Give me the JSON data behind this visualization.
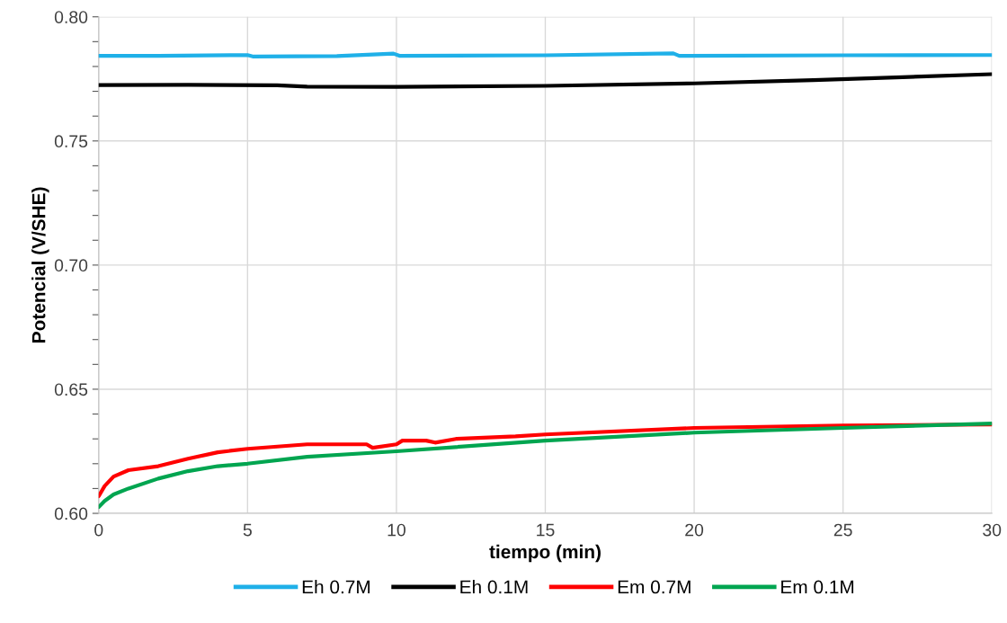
{
  "chart_data": {
    "type": "line",
    "xlabel": "tiempo (min)",
    "ylabel": "Potencial (V/SHE)",
    "xlim": [
      0,
      30
    ],
    "ylim": [
      0.6,
      0.8
    ],
    "xticks": [
      0,
      5,
      10,
      15,
      20,
      25,
      30
    ],
    "yticks": [
      {
        "value": 0.6,
        "label": "0.60"
      },
      {
        "value": 0.61,
        "label": null
      },
      {
        "value": 0.62,
        "label": null
      },
      {
        "value": 0.63,
        "label": null
      },
      {
        "value": 0.64,
        "label": null
      },
      {
        "value": 0.65,
        "label": "0.65"
      },
      {
        "value": 0.66,
        "label": null
      },
      {
        "value": 0.67,
        "label": null
      },
      {
        "value": 0.68,
        "label": null
      },
      {
        "value": 0.69,
        "label": null
      },
      {
        "value": 0.7,
        "label": "0.70"
      },
      {
        "value": 0.71,
        "label": null
      },
      {
        "value": 0.72,
        "label": null
      },
      {
        "value": 0.73,
        "label": null
      },
      {
        "value": 0.74,
        "label": null
      },
      {
        "value": 0.75,
        "label": "0.75"
      },
      {
        "value": 0.76,
        "label": null
      },
      {
        "value": 0.77,
        "label": null
      },
      {
        "value": 0.78,
        "label": null
      },
      {
        "value": 0.79,
        "label": null
      },
      {
        "value": 0.8,
        "label": "0.80"
      }
    ],
    "grid": true,
    "legend": "bottom",
    "marker": "none",
    "line_style": "solid",
    "series": [
      {
        "name": "Eh 0.7M",
        "color": "#1fb0e8",
        "x": [
          0,
          2,
          5,
          5.2,
          8,
          9.9,
          10.1,
          15,
          19.3,
          19.5,
          25,
          30
        ],
        "values": [
          0.7843,
          0.7843,
          0.7846,
          0.784,
          0.7842,
          0.7852,
          0.7843,
          0.7845,
          0.7853,
          0.7843,
          0.7845,
          0.7846
        ]
      },
      {
        "name": "Eh 0.1M",
        "color": "#000000",
        "x": [
          0,
          3,
          6,
          7,
          10,
          15,
          20,
          24,
          27,
          30
        ],
        "values": [
          0.7725,
          0.7726,
          0.7724,
          0.7719,
          0.7718,
          0.7722,
          0.7732,
          0.7745,
          0.7757,
          0.7769
        ]
      },
      {
        "name": "Em 0.7M",
        "color": "#ff0000",
        "x": [
          0,
          0.2,
          0.5,
          1,
          2,
          3,
          4,
          5,
          7,
          9,
          9.2,
          10,
          10.2,
          11,
          11.3,
          12,
          14,
          15,
          20,
          25,
          30
        ],
        "values": [
          0.6069,
          0.611,
          0.6148,
          0.6174,
          0.619,
          0.622,
          0.6246,
          0.626,
          0.6278,
          0.6278,
          0.6264,
          0.6278,
          0.6293,
          0.6293,
          0.6285,
          0.63,
          0.631,
          0.6318,
          0.6344,
          0.6354,
          0.6358
        ]
      },
      {
        "name": "Em 0.1M",
        "color": "#00a550",
        "x": [
          0,
          0.2,
          0.5,
          1,
          2,
          3,
          4,
          5,
          7,
          10,
          15,
          20,
          25,
          30
        ],
        "values": [
          0.6025,
          0.605,
          0.6076,
          0.61,
          0.614,
          0.617,
          0.619,
          0.62,
          0.6228,
          0.625,
          0.6293,
          0.6325,
          0.6344,
          0.6362
        ]
      }
    ]
  }
}
